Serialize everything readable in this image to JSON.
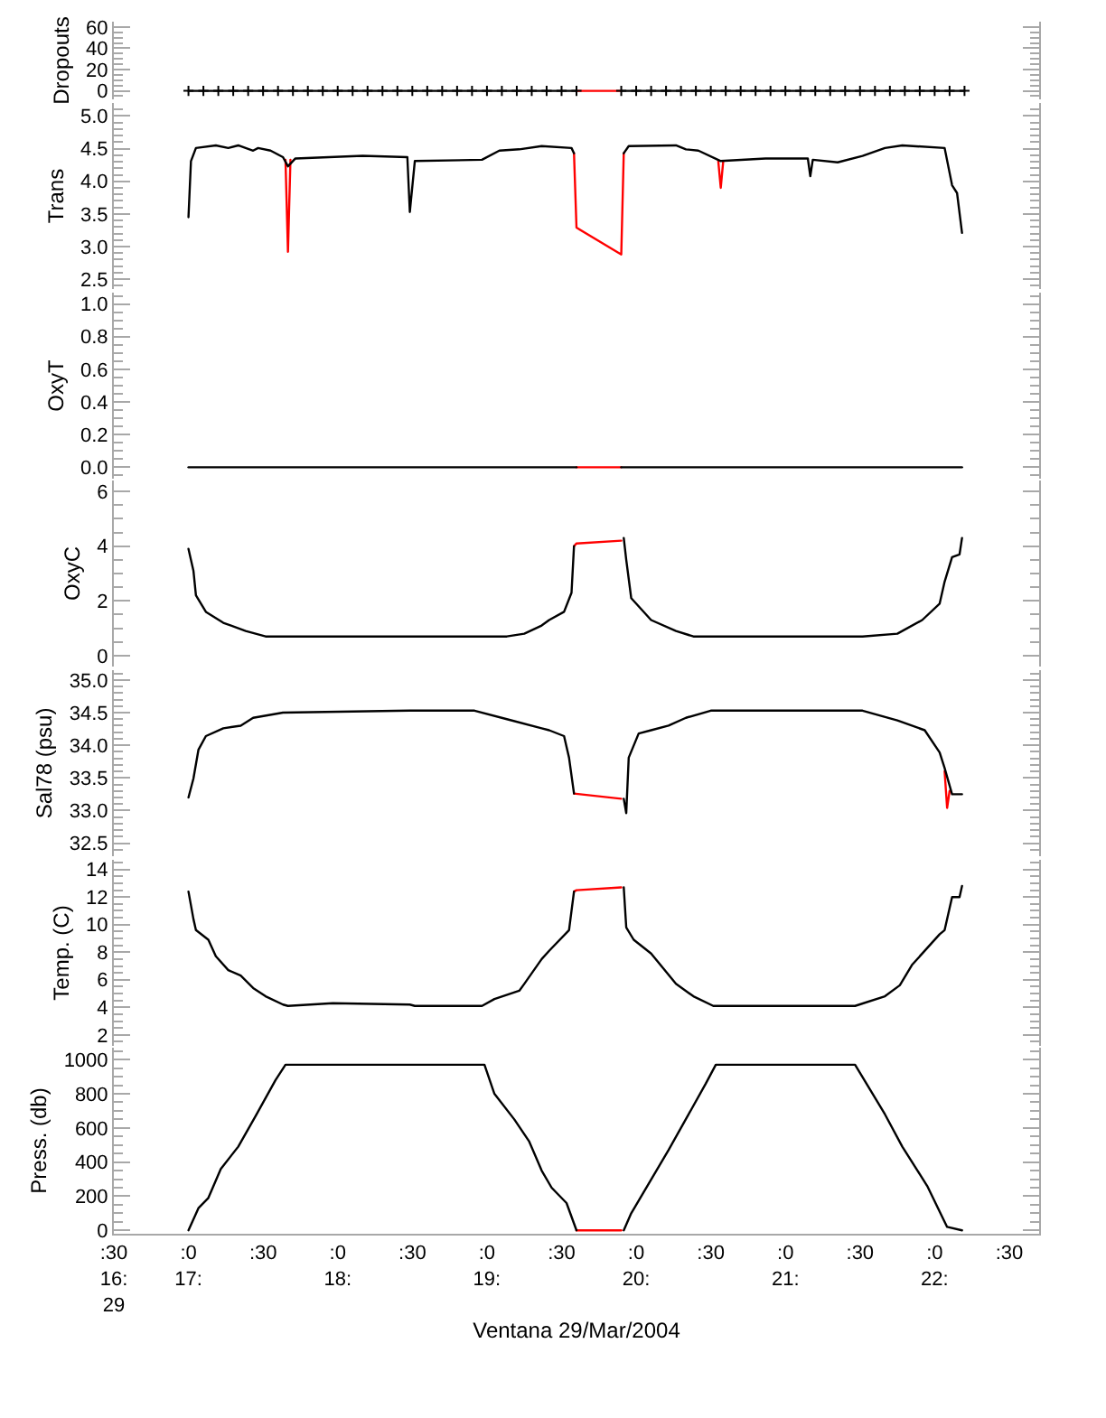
{
  "chart_data": [
    {
      "type": "line",
      "ylabel": "Dropouts",
      "xlim": [
        "2004-03-29T16:30",
        "2004-03-29T22:42"
      ],
      "ylim": [
        -8,
        65
      ],
      "tick_labels": "y",
      "yticks": [
        {
          "value": -5,
          "label": null
        },
        0,
        {
          "value": 5,
          "label": null
        },
        {
          "value": 10,
          "label": null
        },
        {
          "value": 15,
          "label": null
        },
        20,
        {
          "value": 25,
          "label": null
        },
        {
          "value": 30,
          "label": null
        },
        {
          "value": 35,
          "label": null
        },
        40,
        {
          "value": 45,
          "label": null
        },
        {
          "value": 50,
          "label": null
        },
        {
          "value": 55,
          "label": null
        },
        60
      ],
      "series": [
        {
          "color": "#ff0000",
          "x": [
            "2004-03-29T19:36",
            "2004-03-29T19:54"
          ],
          "values": [
            0,
            0
          ]
        },
        {
          "color": "#000000",
          "marker": "cross",
          "x": [
            "2004-03-29T17:00",
            "2004-03-29T17:06",
            "2004-03-29T17:12",
            "2004-03-29T17:18",
            "2004-03-29T17:24",
            "2004-03-29T17:30",
            "2004-03-29T17:36",
            "2004-03-29T17:42",
            "2004-03-29T17:48",
            "2004-03-29T17:54",
            "2004-03-29T18:00",
            "2004-03-29T18:06",
            "2004-03-29T18:12",
            "2004-03-29T18:18",
            "2004-03-29T18:24",
            "2004-03-29T18:30",
            "2004-03-29T18:36",
            "2004-03-29T18:42",
            "2004-03-29T18:48",
            "2004-03-29T18:54",
            "2004-03-29T19:00",
            "2004-03-29T19:06",
            "2004-03-29T19:12",
            "2004-03-29T19:18",
            "2004-03-29T19:24",
            "2004-03-29T19:30",
            "2004-03-29T19:36",
            "2004-03-29T19:45",
            "2004-03-29T19:54",
            "2004-03-29T20:00",
            "2004-03-29T20:06",
            "2004-03-29T20:12",
            "2004-03-29T20:18",
            "2004-03-29T20:24",
            "2004-03-29T20:30",
            "2004-03-29T20:36",
            "2004-03-29T20:42",
            "2004-03-29T20:48",
            "2004-03-29T20:54",
            "2004-03-29T21:00",
            "2004-03-29T21:06",
            "2004-03-29T21:12",
            "2004-03-29T21:18",
            "2004-03-29T21:24",
            "2004-03-29T21:30",
            "2004-03-29T21:36",
            "2004-03-29T21:42",
            "2004-03-29T21:48",
            "2004-03-29T21:54",
            "2004-03-29T22:00",
            "2004-03-29T22:06",
            "2004-03-29T22:12"
          ],
          "values": [
            0,
            0,
            0,
            0,
            0,
            0,
            0,
            0,
            0,
            0,
            0,
            0,
            0,
            0,
            0,
            0,
            0,
            0,
            0,
            0,
            0,
            0,
            0,
            0,
            0,
            0,
            0,
            null,
            0,
            0,
            0,
            0,
            0,
            0,
            0,
            0,
            0,
            0,
            0,
            0,
            0,
            0,
            0,
            0,
            0,
            0,
            0,
            0,
            0,
            0,
            0,
            0
          ]
        }
      ]
    },
    {
      "type": "line",
      "ylabel": "Trans",
      "xlim": [
        "2004-03-29T16:30",
        "2004-03-29T22:42"
      ],
      "ylim": [
        2.35,
        5.2
      ],
      "tick_labels": "y",
      "yticks": [
        {
          "value": 2.4,
          "label": null
        },
        2.5,
        {
          "value": 2.6,
          "label": null
        },
        {
          "value": 2.7,
          "label": null
        },
        {
          "value": 2.8,
          "label": null
        },
        {
          "value": 2.9,
          "label": null
        },
        {
          "value": 3,
          "label": "3.0"
        },
        {
          "value": 3.1,
          "label": null
        },
        {
          "value": 3.2,
          "label": null
        },
        {
          "value": 3.3,
          "label": null
        },
        {
          "value": 3.4,
          "label": null
        },
        3.5,
        {
          "value": 3.6,
          "label": null
        },
        {
          "value": 3.7,
          "label": null
        },
        {
          "value": 3.8,
          "label": null
        },
        {
          "value": 3.9,
          "label": null
        },
        {
          "value": 4,
          "label": "4.0"
        },
        {
          "value": 4.1,
          "label": null
        },
        {
          "value": 4.2,
          "label": null
        },
        {
          "value": 4.3,
          "label": null
        },
        {
          "value": 4.4,
          "label": null
        },
        4.5,
        {
          "value": 4.6,
          "label": null
        },
        {
          "value": 4.7,
          "label": null
        },
        {
          "value": 4.8,
          "label": null
        },
        {
          "value": 4.9,
          "label": null
        },
        {
          "value": 5,
          "label": "5.0"
        },
        {
          "value": 5.1,
          "label": null
        }
      ],
      "series": [
        {
          "color": "#ff0000",
          "x": [
            "2004-03-29T17:39",
            "2004-03-29T17:40",
            "2004-03-29T17:41",
            "2004-03-29T18:00",
            "2004-03-29T19:35",
            "2004-03-29T19:36",
            "2004-03-29T19:54",
            "2004-03-29T19:55",
            "2004-03-29T20:12",
            "2004-03-29T20:33",
            "2004-03-29T20:34",
            "2004-03-29T20:35"
          ],
          "values": [
            4.33,
            2.92,
            4.33,
            null,
            4.43,
            3.29,
            2.88,
            4.43,
            null,
            4.31,
            3.9,
            4.31
          ]
        },
        {
          "color": "#000000",
          "x": [
            "2004-03-29T17:00",
            "2004-03-29T17:01",
            "2004-03-29T17:03",
            "2004-03-29T17:11",
            "2004-03-29T17:16",
            "2004-03-29T17:20",
            "2004-03-29T17:26",
            "2004-03-29T17:28",
            "2004-03-29T17:33",
            "2004-03-29T17:38",
            "2004-03-29T17:40",
            "2004-03-29T17:43",
            "2004-03-29T18:10",
            "2004-03-29T18:28",
            "2004-03-29T18:29",
            "2004-03-29T18:31",
            "2004-03-29T18:58",
            "2004-03-29T19:05",
            "2004-03-29T19:13",
            "2004-03-29T19:22",
            "2004-03-29T19:34",
            "2004-03-29T19:35",
            "2004-03-29T19:45",
            "2004-03-29T19:55",
            "2004-03-29T19:57",
            "2004-03-29T20:16",
            "2004-03-29T20:20",
            "2004-03-29T20:25",
            "2004-03-29T20:34",
            "2004-03-29T20:52",
            "2004-03-29T21:09",
            "2004-03-29T21:10",
            "2004-03-29T21:11",
            "2004-03-29T21:21",
            "2004-03-29T21:31",
            "2004-03-29T21:40",
            "2004-03-29T21:47",
            "2004-03-29T22:04",
            "2004-03-29T22:07",
            "2004-03-29T22:09",
            "2004-03-29T22:11"
          ],
          "values": [
            3.45,
            4.31,
            4.51,
            4.55,
            4.51,
            4.55,
            4.47,
            4.51,
            4.47,
            4.37,
            4.23,
            4.35,
            4.39,
            4.37,
            3.53,
            4.31,
            4.33,
            4.47,
            4.49,
            4.54,
            4.51,
            4.43,
            null,
            4.43,
            4.54,
            4.55,
            4.49,
            4.47,
            4.31,
            4.35,
            4.35,
            4.08,
            4.33,
            4.29,
            4.39,
            4.51,
            4.55,
            4.51,
            3.94,
            3.82,
            3.21
          ]
        }
      ]
    },
    {
      "type": "line",
      "ylabel": "OxyT",
      "xlim": [
        "2004-03-29T16:30",
        "2004-03-29T22:42"
      ],
      "ylim": [
        -0.07,
        1.07
      ],
      "tick_labels": "y",
      "yticks": [
        {
          "value": -0.05,
          "label": null
        },
        {
          "value": 0,
          "label": "0.0"
        },
        {
          "value": 0.05,
          "label": null
        },
        {
          "value": 0.1,
          "label": null
        },
        {
          "value": 0.15,
          "label": null
        },
        0.2,
        {
          "value": 0.25,
          "label": null
        },
        {
          "value": 0.3,
          "label": null
        },
        {
          "value": 0.35,
          "label": null
        },
        0.4,
        {
          "value": 0.45,
          "label": null
        },
        {
          "value": 0.5,
          "label": null
        },
        {
          "value": 0.55,
          "label": null
        },
        0.6,
        {
          "value": 0.65,
          "label": null
        },
        {
          "value": 0.7,
          "label": null
        },
        {
          "value": 0.75,
          "label": null
        },
        0.8,
        {
          "value": 0.85,
          "label": null
        },
        {
          "value": 0.9,
          "label": null
        },
        {
          "value": 0.95,
          "label": null
        },
        {
          "value": 1,
          "label": "1.0"
        },
        {
          "value": 1.05,
          "label": null
        }
      ],
      "series": [
        {
          "color": "#ff0000",
          "x": [
            "2004-03-29T19:36",
            "2004-03-29T19:54"
          ],
          "values": [
            0,
            0
          ]
        },
        {
          "color": "#000000",
          "x": [
            "2004-03-29T17:00",
            "2004-03-29T19:36",
            "2004-03-29T19:45",
            "2004-03-29T19:54",
            "2004-03-29T22:11"
          ],
          "values": [
            0,
            0,
            null,
            0,
            0
          ]
        }
      ]
    },
    {
      "type": "line",
      "ylabel": "OxyC",
      "xlim": [
        "2004-03-29T16:30",
        "2004-03-29T22:42"
      ],
      "ylim": [
        -0.4,
        6.4
      ],
      "tick_labels": "y",
      "yticks": [
        0,
        {
          "value": 0.5,
          "label": null
        },
        {
          "value": 1,
          "label": null
        },
        {
          "value": 1.5,
          "label": null
        },
        2,
        {
          "value": 2.5,
          "label": null
        },
        {
          "value": 3,
          "label": null
        },
        {
          "value": 3.5,
          "label": null
        },
        4,
        {
          "value": 4.5,
          "label": null
        },
        {
          "value": 5,
          "label": null
        },
        {
          "value": 5.5,
          "label": null
        },
        6
      ],
      "series": [
        {
          "color": "#ff0000",
          "x": [
            "2004-03-29T19:35",
            "2004-03-29T19:36",
            "2004-03-29T19:54"
          ],
          "values": [
            4,
            4.1,
            4.2
          ]
        },
        {
          "color": "#000000",
          "x": [
            "2004-03-29T17:00",
            "2004-03-29T17:02",
            "2004-03-29T17:03",
            "2004-03-29T17:07",
            "2004-03-29T17:14",
            "2004-03-29T17:23",
            "2004-03-29T17:31",
            "2004-03-29T18:34",
            "2004-03-29T19:08",
            "2004-03-29T19:15",
            "2004-03-29T19:22",
            "2004-03-29T19:25",
            "2004-03-29T19:31",
            "2004-03-29T19:34",
            "2004-03-29T19:35",
            "2004-03-29T19:45",
            "2004-03-29T19:55",
            "2004-03-29T19:56",
            "2004-03-29T19:58",
            "2004-03-29T20:06",
            "2004-03-29T20:16",
            "2004-03-29T20:23",
            "2004-03-29T21:31",
            "2004-03-29T21:45",
            "2004-03-29T21:55",
            "2004-03-29T22:02",
            "2004-03-29T22:04",
            "2004-03-29T22:07",
            "2004-03-29T22:10",
            "2004-03-29T22:11"
          ],
          "values": [
            3.9,
            3.1,
            2.2,
            1.6,
            1.2,
            0.9,
            0.7,
            0.7,
            0.7,
            0.8,
            1.1,
            1.3,
            1.6,
            2.3,
            4,
            null,
            4.3,
            3.5,
            2.1,
            1.3,
            0.9,
            0.7,
            0.7,
            0.8,
            1.3,
            1.9,
            2.7,
            3.6,
            3.7,
            4.3
          ]
        }
      ]
    },
    {
      "type": "line",
      "ylabel": "Sal78 (psu)",
      "xlim": [
        "2004-03-29T16:30",
        "2004-03-29T22:42"
      ],
      "ylim": [
        32.3,
        35.15
      ],
      "tick_labels": "y",
      "yticks": [
        {
          "value": 32.4,
          "label": null
        },
        32.5,
        {
          "value": 32.6,
          "label": null
        },
        {
          "value": 32.7,
          "label": null
        },
        {
          "value": 32.8,
          "label": null
        },
        {
          "value": 32.9,
          "label": null
        },
        {
          "value": 33,
          "label": "33.0"
        },
        {
          "value": 33.1,
          "label": null
        },
        {
          "value": 33.2,
          "label": null
        },
        {
          "value": 33.3,
          "label": null
        },
        {
          "value": 33.4,
          "label": null
        },
        33.5,
        {
          "value": 33.6,
          "label": null
        },
        {
          "value": 33.7,
          "label": null
        },
        {
          "value": 33.8,
          "label": null
        },
        {
          "value": 33.9,
          "label": null
        },
        {
          "value": 34,
          "label": "34.0"
        },
        {
          "value": 34.1,
          "label": null
        },
        {
          "value": 34.2,
          "label": null
        },
        {
          "value": 34.3,
          "label": null
        },
        {
          "value": 34.4,
          "label": null
        },
        34.5,
        {
          "value": 34.6,
          "label": null
        },
        {
          "value": 34.7,
          "label": null
        },
        {
          "value": 34.8,
          "label": null
        },
        {
          "value": 34.9,
          "label": null
        },
        {
          "value": 35,
          "label": "35.0"
        },
        {
          "value": 35.1,
          "label": null
        }
      ],
      "series": [
        {
          "color": "#ff0000",
          "x": [
            "2004-03-29T19:35",
            "2004-03-29T19:54",
            "2004-03-29T20:30",
            "2004-03-29T22:04",
            "2004-03-29T22:05",
            "2004-03-29T22:06"
          ],
          "values": [
            33.26,
            33.18,
            null,
            33.6,
            33.04,
            33.3
          ]
        },
        {
          "color": "#000000",
          "x": [
            "2004-03-29T17:00",
            "2004-03-29T17:02",
            "2004-03-29T17:04",
            "2004-03-29T17:07",
            "2004-03-29T17:14",
            "2004-03-29T17:21",
            "2004-03-29T17:26",
            "2004-03-29T17:38",
            "2004-03-29T18:29",
            "2004-03-29T18:55",
            "2004-03-29T19:08",
            "2004-03-29T19:22",
            "2004-03-29T19:25",
            "2004-03-29T19:31",
            "2004-03-29T19:33",
            "2004-03-29T19:35",
            "2004-03-29T19:45",
            "2004-03-29T19:55",
            "2004-03-29T19:56",
            "2004-03-29T19:57",
            "2004-03-29T20:01",
            "2004-03-29T20:06",
            "2004-03-29T20:13",
            "2004-03-29T20:20",
            "2004-03-29T20:30",
            "2004-03-29T21:31",
            "2004-03-29T21:45",
            "2004-03-29T21:56",
            "2004-03-29T22:02",
            "2004-03-29T22:04",
            "2004-03-29T22:07",
            "2004-03-29T22:11"
          ],
          "values": [
            33.2,
            33.49,
            33.93,
            34.14,
            34.26,
            34.3,
            34.42,
            34.5,
            34.53,
            34.53,
            34.4,
            34.26,
            34.23,
            34.14,
            33.81,
            33.26,
            null,
            33.18,
            32.96,
            33.81,
            34.18,
            34.23,
            34.3,
            34.42,
            34.53,
            34.53,
            34.38,
            34.23,
            33.89,
            33.65,
            33.25,
            33.25
          ]
        }
      ]
    },
    {
      "type": "line",
      "ylabel": "Temp. (C)",
      "xlim": [
        "2004-03-29T16:30",
        "2004-03-29T22:42"
      ],
      "ylim": [
        1.2,
        14.7
      ],
      "tick_labels": "y",
      "yticks": [
        {
          "value": 1.5,
          "label": null
        },
        2,
        {
          "value": 2.5,
          "label": null
        },
        {
          "value": 3,
          "label": null
        },
        {
          "value": 3.5,
          "label": null
        },
        4,
        {
          "value": 4.5,
          "label": null
        },
        {
          "value": 5,
          "label": null
        },
        {
          "value": 5.5,
          "label": null
        },
        6,
        {
          "value": 6.5,
          "label": null
        },
        {
          "value": 7,
          "label": null
        },
        {
          "value": 7.5,
          "label": null
        },
        8,
        {
          "value": 8.5,
          "label": null
        },
        {
          "value": 9,
          "label": null
        },
        {
          "value": 9.5,
          "label": null
        },
        10,
        {
          "value": 10.5,
          "label": null
        },
        {
          "value": 11,
          "label": null
        },
        {
          "value": 11.5,
          "label": null
        },
        12,
        {
          "value": 12.5,
          "label": null
        },
        {
          "value": 13,
          "label": null
        },
        {
          "value": 13.5,
          "label": null
        },
        14,
        {
          "value": 14.5,
          "label": null
        }
      ],
      "series": [
        {
          "color": "#ff0000",
          "x": [
            "2004-03-29T19:35",
            "2004-03-29T19:36",
            "2004-03-29T19:54"
          ],
          "values": [
            12.4,
            12.5,
            12.7
          ]
        },
        {
          "color": "#000000",
          "x": [
            "2004-03-29T17:00",
            "2004-03-29T17:01",
            "2004-03-29T17:02",
            "2004-03-29T17:03",
            "2004-03-29T17:08",
            "2004-03-29T17:11",
            "2004-03-29T17:16",
            "2004-03-29T17:21",
            "2004-03-29T17:26",
            "2004-03-29T17:31",
            "2004-03-29T17:38",
            "2004-03-29T17:40",
            "2004-03-29T17:58",
            "2004-03-29T18:29",
            "2004-03-29T18:31",
            "2004-03-29T18:58",
            "2004-03-29T19:03",
            "2004-03-29T19:13",
            "2004-03-29T19:15",
            "2004-03-29T19:22",
            "2004-03-29T19:25",
            "2004-03-29T19:33",
            "2004-03-29T19:35",
            "2004-03-29T19:45",
            "2004-03-29T19:55",
            "2004-03-29T19:56",
            "2004-03-29T19:59",
            "2004-03-29T20:06",
            "2004-03-29T20:16",
            "2004-03-29T20:23",
            "2004-03-29T20:31",
            "2004-03-29T21:28",
            "2004-03-29T21:40",
            "2004-03-29T21:46",
            "2004-03-29T21:51",
            "2004-03-29T22:02",
            "2004-03-29T22:04",
            "2004-03-29T22:07",
            "2004-03-29T22:10",
            "2004-03-29T22:11"
          ],
          "values": [
            12.4,
            11.4,
            10.4,
            9.6,
            8.9,
            7.7,
            6.7,
            6.3,
            5.4,
            4.8,
            4.2,
            4.1,
            4.3,
            4.2,
            4.1,
            4.1,
            4.6,
            5.2,
            5.7,
            7.5,
            8.1,
            9.6,
            12.4,
            null,
            12.7,
            9.8,
            8.9,
            7.9,
            5.7,
            4.8,
            4.1,
            4.1,
            4.8,
            5.6,
            7.1,
            9.3,
            9.6,
            12,
            12,
            12.8
          ]
        }
      ]
    },
    {
      "type": "line",
      "ylabel": "Press. (db)",
      "xlabel": "Ventana 29/Mar/2004",
      "xlim": [
        "2004-03-29T16:30",
        "2004-03-29T22:42"
      ],
      "ylim": [
        -20,
        1070
      ],
      "xticks": [
        {
          "value": "2004-03-29T16:30",
          "label": ":30\n16:\n29"
        },
        {
          "value": "2004-03-29T17:00",
          "label": ":0\n17:"
        },
        {
          "value": "2004-03-29T17:30",
          "label": ":30"
        },
        {
          "value": "2004-03-29T18:00",
          "label": ":0\n18:"
        },
        {
          "value": "2004-03-29T18:30",
          "label": ":30"
        },
        {
          "value": "2004-03-29T19:00",
          "label": ":0\n19:"
        },
        {
          "value": "2004-03-29T19:30",
          "label": ":30"
        },
        {
          "value": "2004-03-29T20:00",
          "label": ":0\n20:"
        },
        {
          "value": "2004-03-29T20:30",
          "label": ":30"
        },
        {
          "value": "2004-03-29T21:00",
          "label": ":0\n21:"
        },
        {
          "value": "2004-03-29T21:30",
          "label": ":30"
        },
        {
          "value": "2004-03-29T22:00",
          "label": ":0\n22:"
        },
        {
          "value": "2004-03-29T22:30",
          "label": ":30"
        }
      ],
      "yticks": [
        0,
        {
          "value": 50,
          "label": null
        },
        {
          "value": 100,
          "label": null
        },
        {
          "value": 150,
          "label": null
        },
        200,
        {
          "value": 250,
          "label": null
        },
        {
          "value": 300,
          "label": null
        },
        {
          "value": 350,
          "label": null
        },
        400,
        {
          "value": 450,
          "label": null
        },
        {
          "value": 500,
          "label": null
        },
        {
          "value": 550,
          "label": null
        },
        600,
        {
          "value": 650,
          "label": null
        },
        {
          "value": 700,
          "label": null
        },
        {
          "value": 750,
          "label": null
        },
        800,
        {
          "value": 850,
          "label": null
        },
        {
          "value": 900,
          "label": null
        },
        {
          "value": 950,
          "label": null
        },
        1000,
        {
          "value": 1050,
          "label": null
        }
      ],
      "series": [
        {
          "color": "#ff0000",
          "x": [
            "2004-03-29T19:36",
            "2004-03-29T19:54"
          ],
          "values": [
            0,
            0
          ]
        },
        {
          "color": "#000000",
          "x": [
            "2004-03-29T17:00",
            "2004-03-29T17:04",
            "2004-03-29T17:08",
            "2004-03-29T17:13",
            "2004-03-29T17:20",
            "2004-03-29T17:27",
            "2004-03-29T17:35",
            "2004-03-29T17:39",
            "2004-03-29T18:59",
            "2004-03-29T19:03",
            "2004-03-29T19:11",
            "2004-03-29T19:17",
            "2004-03-29T19:22",
            "2004-03-29T19:26",
            "2004-03-29T19:32",
            "2004-03-29T19:36",
            "2004-03-29T19:45",
            "2004-03-29T19:55",
            "2004-03-29T19:58",
            "2004-03-29T20:13",
            "2004-03-29T20:28",
            "2004-03-29T20:32",
            "2004-03-29T21:28",
            "2004-03-29T21:40",
            "2004-03-29T21:47",
            "2004-03-29T21:57",
            "2004-03-29T22:05",
            "2004-03-29T22:11"
          ],
          "values": [
            0,
            130,
            190,
            360,
            490,
            670,
            880,
            970,
            970,
            800,
            650,
            520,
            350,
            250,
            160,
            0,
            null,
            0,
            100,
            470,
            860,
            970,
            970,
            680,
            490,
            260,
            20,
            0
          ]
        }
      ]
    }
  ]
}
